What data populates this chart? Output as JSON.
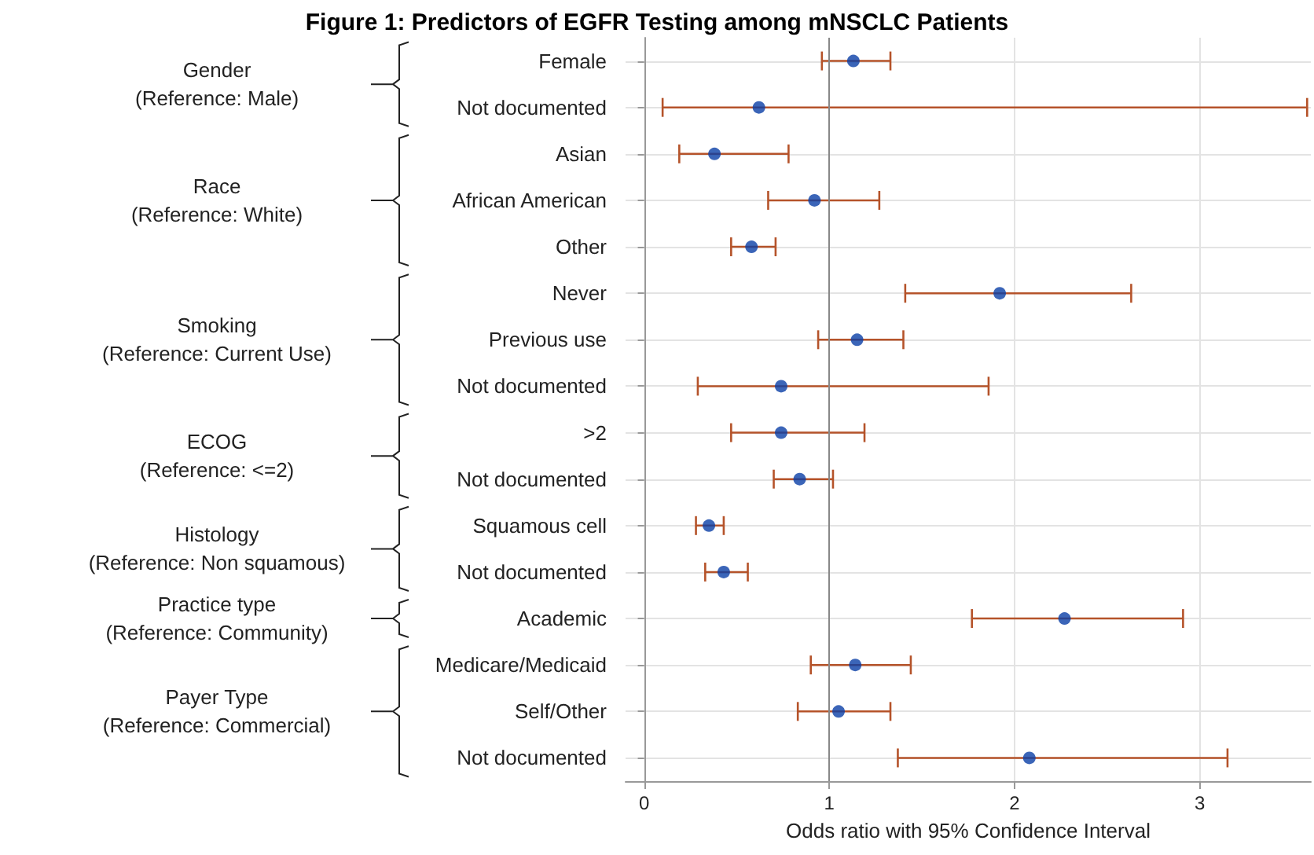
{
  "chart_data": {
    "type": "scatter",
    "orientation": "horizontal",
    "title": "Figure 1: Predictors of EGFR Testing among mNSCLC Patients",
    "xlabel": "Odds ratio with 95% Confidence Interval",
    "categories": [
      "Female",
      "Not documented",
      "Asian",
      "African American",
      "Other",
      "Never",
      "Previous use",
      "Not documented",
      ">2",
      "Not documented",
      "Squamous cell",
      "Not documented",
      "Academic",
      "Medicare/Medicaid",
      "Self/Other",
      "Not documented"
    ],
    "values": [
      1.13,
      0.62,
      0.38,
      0.92,
      0.58,
      1.92,
      1.15,
      0.74,
      0.74,
      0.84,
      0.35,
      0.43,
      2.27,
      1.14,
      1.05,
      2.08
    ],
    "errors": [
      [
        0.96,
        1.33
      ],
      [
        0.1,
        3.58
      ],
      [
        0.19,
        0.78
      ],
      [
        0.67,
        1.27
      ],
      [
        0.47,
        0.71
      ],
      [
        1.41,
        2.63
      ],
      [
        0.94,
        1.4
      ],
      [
        0.29,
        1.86
      ],
      [
        0.47,
        1.19
      ],
      [
        0.7,
        1.02
      ],
      [
        0.28,
        0.43
      ],
      [
        0.33,
        0.56
      ],
      [
        1.77,
        2.91
      ],
      [
        0.9,
        1.44
      ],
      [
        0.83,
        1.33
      ],
      [
        1.37,
        3.15
      ]
    ],
    "color": "#0a3fa6",
    "xlim": [
      -0.1,
      3.6
    ],
    "xticks": [
      0,
      1,
      2,
      3
    ],
    "grid": true,
    "marker": "circle",
    "ref_lines": [
      {
        "axis": "x",
        "value": 1,
        "color": "#888888"
      }
    ],
    "annotations": [
      "Gender\n(Reference: Male)",
      "Race\n(Reference: White)",
      "Smoking\n(Reference: Current Use)",
      "ECOG\n(Reference: <=2)",
      "Histology\n(Reference: Non squamous)",
      "Practice type\n(Reference: Community)",
      "Payer Type\n(Reference: Commercial)"
    ]
  }
}
